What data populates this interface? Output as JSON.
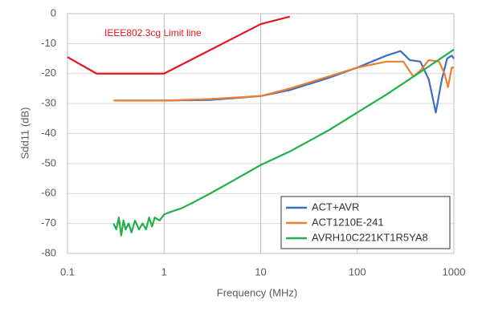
{
  "chart_data": {
    "type": "line",
    "x_label": "Frequency (MHz)",
    "y_label": "Sdd11 (dB)",
    "xlim": [
      0.1,
      1000
    ],
    "xticks": [
      0.1,
      1,
      10,
      100,
      1000
    ],
    "xscale": "log",
    "ylim": [
      -80,
      0
    ],
    "yticks": [
      0,
      -10,
      -20,
      -30,
      -40,
      -50,
      -60,
      -70,
      -80
    ],
    "grid": true,
    "legend": "lower right",
    "limit_line": {
      "label": "IEEE802.3cg Limit line",
      "color": "#e8141c",
      "x": [
        0.1,
        0.2,
        1,
        10,
        20
      ],
      "values": [
        -14.5,
        -20,
        -20,
        -3.5,
        -1
      ]
    },
    "series": [
      {
        "name": "ACT+AVR",
        "color": "#3a6fc4",
        "x": [
          0.3,
          1,
          3,
          10,
          20,
          50,
          100,
          200,
          280,
          350,
          450,
          550,
          650,
          750,
          850,
          950,
          1000
        ],
        "values": [
          -29,
          -29,
          -28.8,
          -27.5,
          -25.5,
          -21.5,
          -18,
          -14,
          -12.5,
          -15.5,
          -16,
          -22,
          -33,
          -22,
          -15,
          -14,
          -15
        ]
      },
      {
        "name": "ACT1210E-241",
        "color": "#ed7d31",
        "x": [
          0.3,
          1,
          3,
          10,
          20,
          50,
          100,
          200,
          300,
          380,
          450,
          550,
          700,
          800,
          870,
          950,
          1000
        ],
        "values": [
          -29,
          -29,
          -28.5,
          -27.5,
          -25,
          -21,
          -18,
          -16,
          -16,
          -21,
          -19,
          -15.5,
          -16,
          -20,
          -24.5,
          -18,
          -18
        ]
      },
      {
        "name": "AVRH10C221KT1R5YA8",
        "color": "#22b04b",
        "x": [
          0.3,
          0.32,
          0.34,
          0.36,
          0.38,
          0.4,
          0.43,
          0.46,
          0.5,
          0.55,
          0.6,
          0.65,
          0.7,
          0.75,
          0.8,
          0.9,
          1,
          1.2,
          1.5,
          2,
          3,
          5,
          10,
          20,
          50,
          100,
          200,
          500,
          1000
        ],
        "values": [
          -70,
          -72,
          -68,
          -74,
          -69,
          -72,
          -70,
          -73,
          -69,
          -72,
          -70,
          -72,
          -68,
          -71,
          -68,
          -69,
          -67,
          -66,
          -65,
          -63,
          -60,
          -56,
          -50.5,
          -46,
          -39,
          -33,
          -27,
          -18.5,
          -12
        ]
      }
    ]
  }
}
